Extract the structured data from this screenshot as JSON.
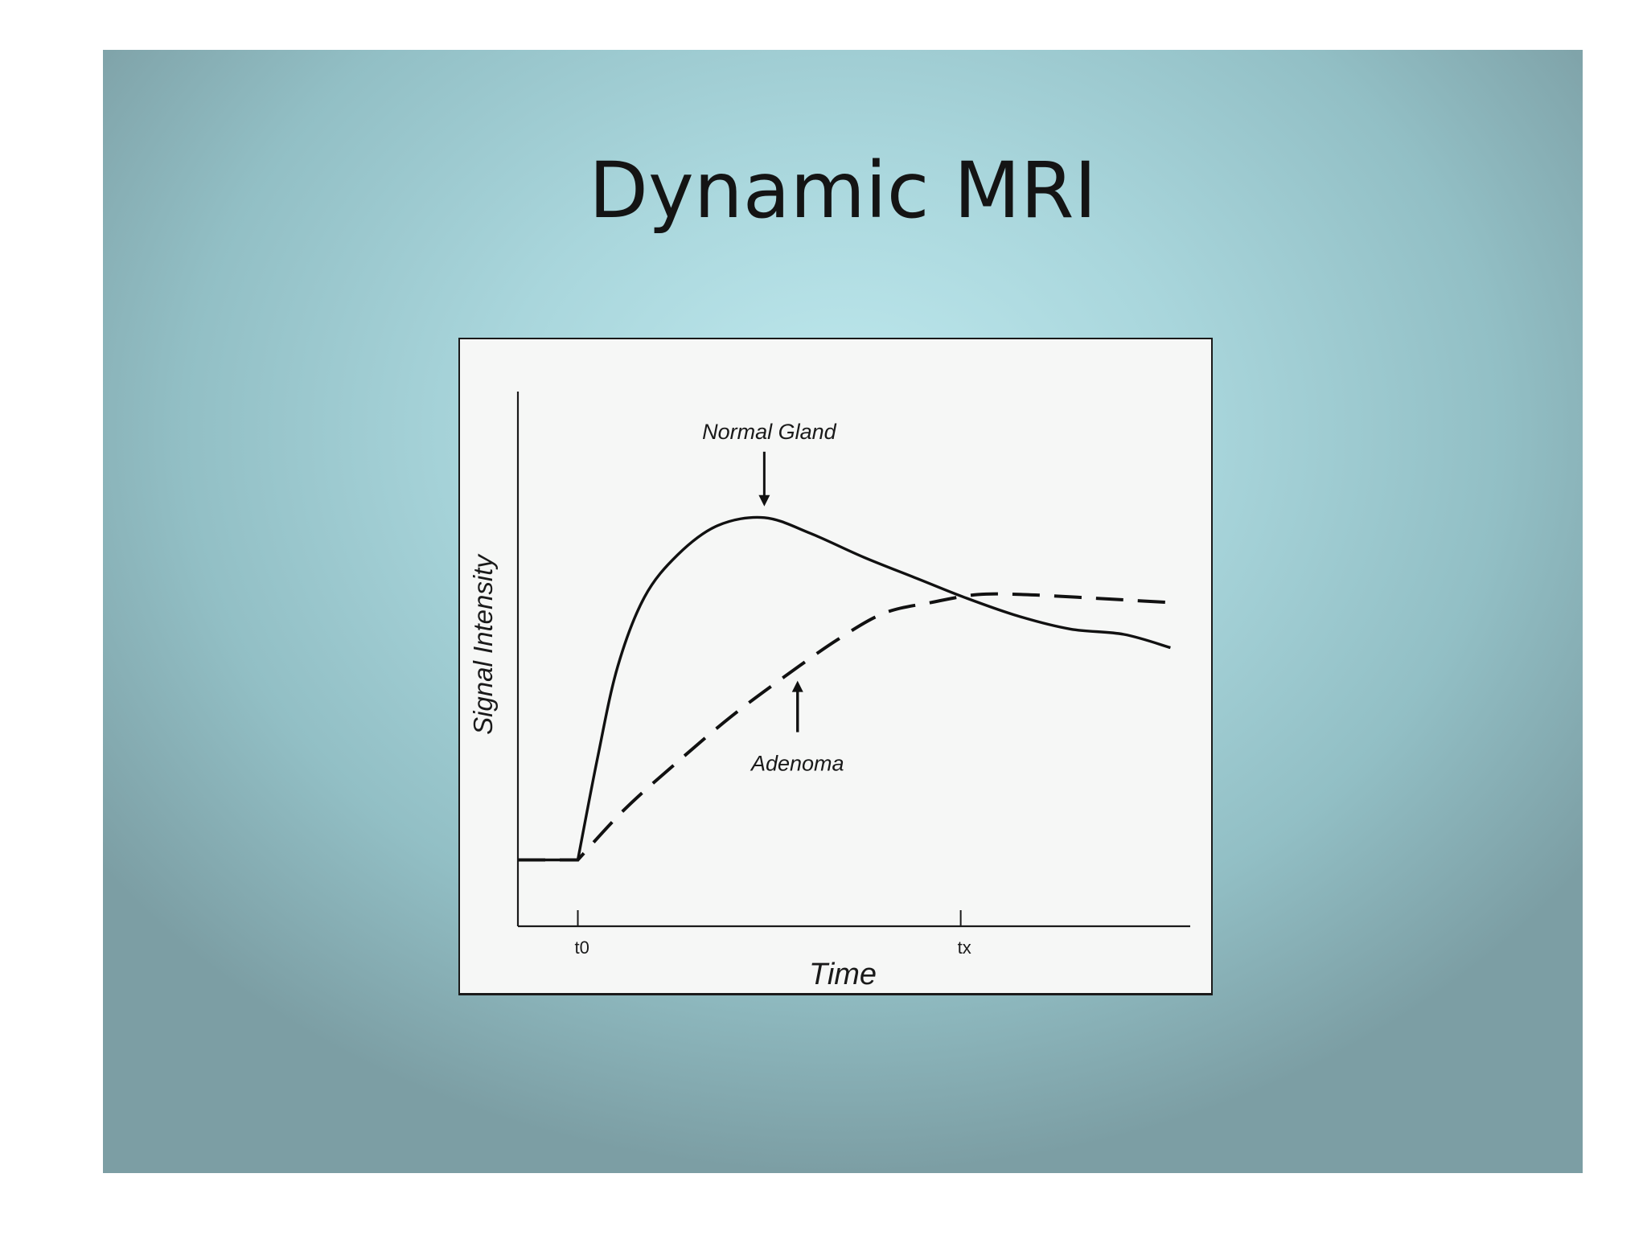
{
  "slide": {
    "title": "Dynamic MRI",
    "background_color": "#a9d6dc"
  },
  "chart_data": {
    "type": "line",
    "title": "",
    "xlabel": "Time",
    "ylabel": "Signal Intensity",
    "x_ticks": [
      {
        "label": "t0",
        "value": 0.09
      },
      {
        "label": "tx",
        "value": 0.665
      }
    ],
    "xlim": [
      0,
      1
    ],
    "ylim": [
      0,
      1
    ],
    "grid": false,
    "series": [
      {
        "name": "Normal Gland",
        "style": "solid",
        "points": [
          [
            0.0,
            0.125
          ],
          [
            0.09,
            0.125
          ],
          [
            0.12,
            0.32
          ],
          [
            0.15,
            0.49
          ],
          [
            0.19,
            0.62
          ],
          [
            0.24,
            0.7
          ],
          [
            0.3,
            0.755
          ],
          [
            0.37,
            0.77
          ],
          [
            0.44,
            0.74
          ],
          [
            0.52,
            0.695
          ],
          [
            0.6,
            0.655
          ],
          [
            0.67,
            0.62
          ],
          [
            0.75,
            0.585
          ],
          [
            0.83,
            0.56
          ],
          [
            0.91,
            0.55
          ],
          [
            0.98,
            0.525
          ]
        ]
      },
      {
        "name": "Adenoma",
        "style": "dashed",
        "points": [
          [
            0.0,
            0.125
          ],
          [
            0.09,
            0.125
          ],
          [
            0.16,
            0.22
          ],
          [
            0.24,
            0.31
          ],
          [
            0.32,
            0.395
          ],
          [
            0.4,
            0.47
          ],
          [
            0.48,
            0.54
          ],
          [
            0.55,
            0.59
          ],
          [
            0.62,
            0.61
          ],
          [
            0.69,
            0.625
          ],
          [
            0.76,
            0.625
          ],
          [
            0.84,
            0.62
          ],
          [
            0.91,
            0.615
          ],
          [
            0.98,
            0.61
          ]
        ]
      }
    ],
    "annotations": [
      {
        "text": "Normal Gland",
        "target_series": "Normal Gland",
        "x": 0.37,
        "y": 0.77,
        "arrow": "down",
        "position": "above"
      },
      {
        "text": "Adenoma",
        "target_series": "Adenoma",
        "x": 0.42,
        "y": 0.49,
        "arrow": "up",
        "position": "below"
      }
    ]
  }
}
